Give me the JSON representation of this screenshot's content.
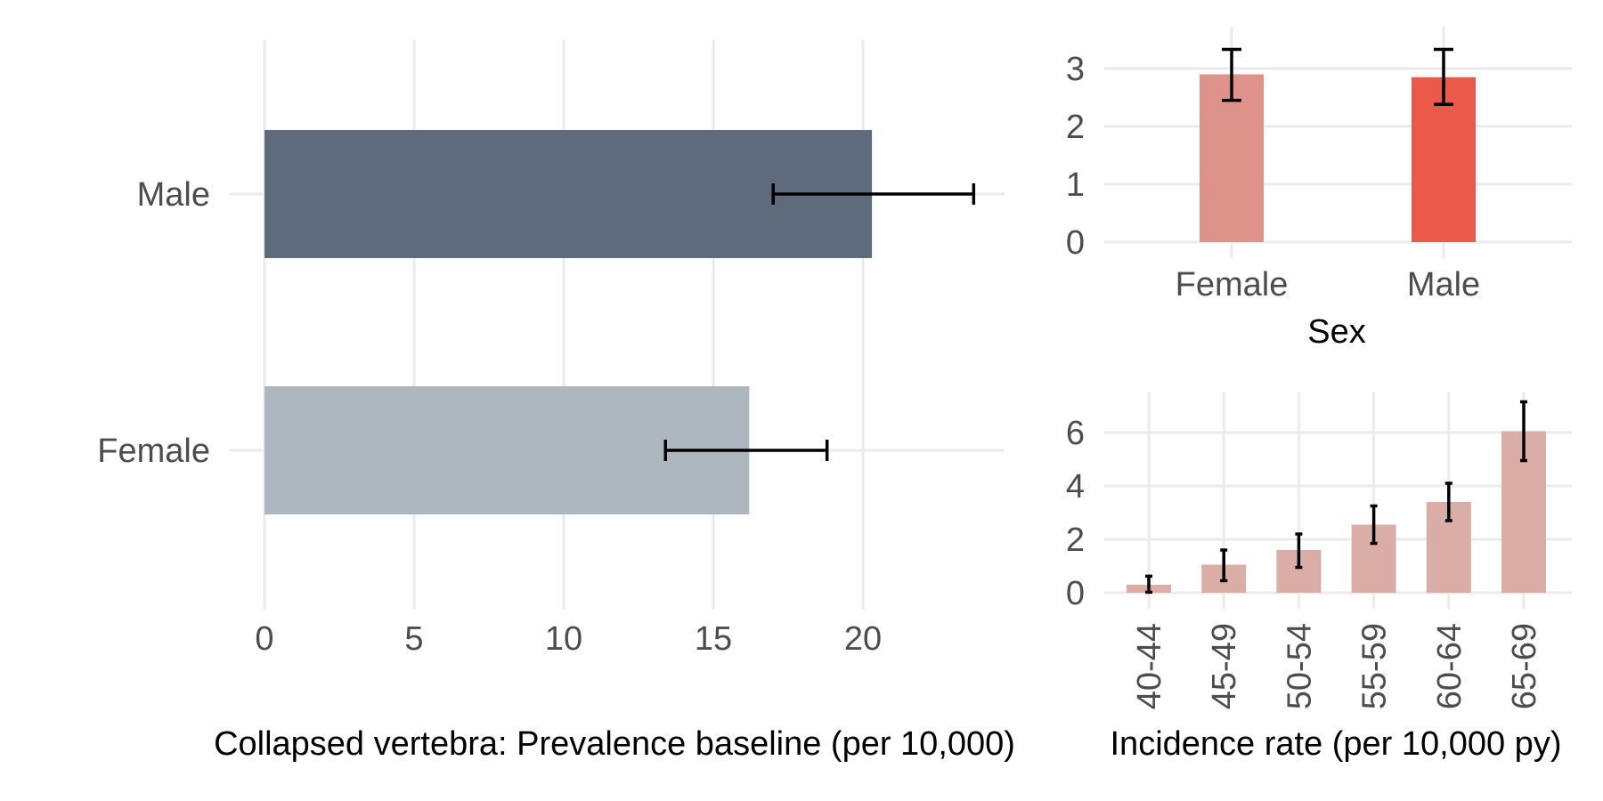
{
  "chart_data": [
    {
      "type": "bar",
      "orientation": "horizontal",
      "categories": [
        "Male",
        "Female"
      ],
      "values": [
        20.3,
        16.2
      ],
      "error_low": [
        17.0,
        13.4
      ],
      "error_high": [
        23.7,
        18.8
      ],
      "colors": [
        "#5d6b7c",
        "#aeb6bf"
      ],
      "xlabel": "Collapsed vertebra: Prevalence baseline (per 10,000)",
      "ylabel": "",
      "xlim": [
        0,
        25
      ],
      "xticks": [
        "0",
        "5",
        "10",
        "15",
        "20"
      ]
    },
    {
      "type": "bar",
      "categories": [
        "Female",
        "Male"
      ],
      "values": [
        2.9,
        2.85
      ],
      "error_low": [
        2.45,
        2.38
      ],
      "error_high": [
        3.33,
        3.33
      ],
      "colors": [
        "#dd928a",
        "#ea5a4b"
      ],
      "xlabel": "Sex",
      "ylabel": "",
      "ylim": [
        0,
        3.5
      ],
      "yticks": [
        "0",
        "1",
        "2",
        "3"
      ]
    },
    {
      "type": "bar",
      "categories": [
        "40-44",
        "45-49",
        "50-54",
        "55-59",
        "60-64",
        "65-69"
      ],
      "values": [
        0.3,
        1.05,
        1.6,
        2.55,
        3.4,
        6.05
      ],
      "error_low": [
        0.02,
        0.45,
        0.95,
        1.85,
        2.7,
        4.95
      ],
      "error_high": [
        0.62,
        1.6,
        2.2,
        3.25,
        4.1,
        7.15
      ],
      "colors": [
        "#dbada7"
      ],
      "xlabel": "Incidence rate (per 10,000 py)",
      "ylabel": "",
      "ylim": [
        0,
        7.5
      ],
      "yticks": [
        "0",
        "2",
        "4",
        "6"
      ]
    }
  ]
}
